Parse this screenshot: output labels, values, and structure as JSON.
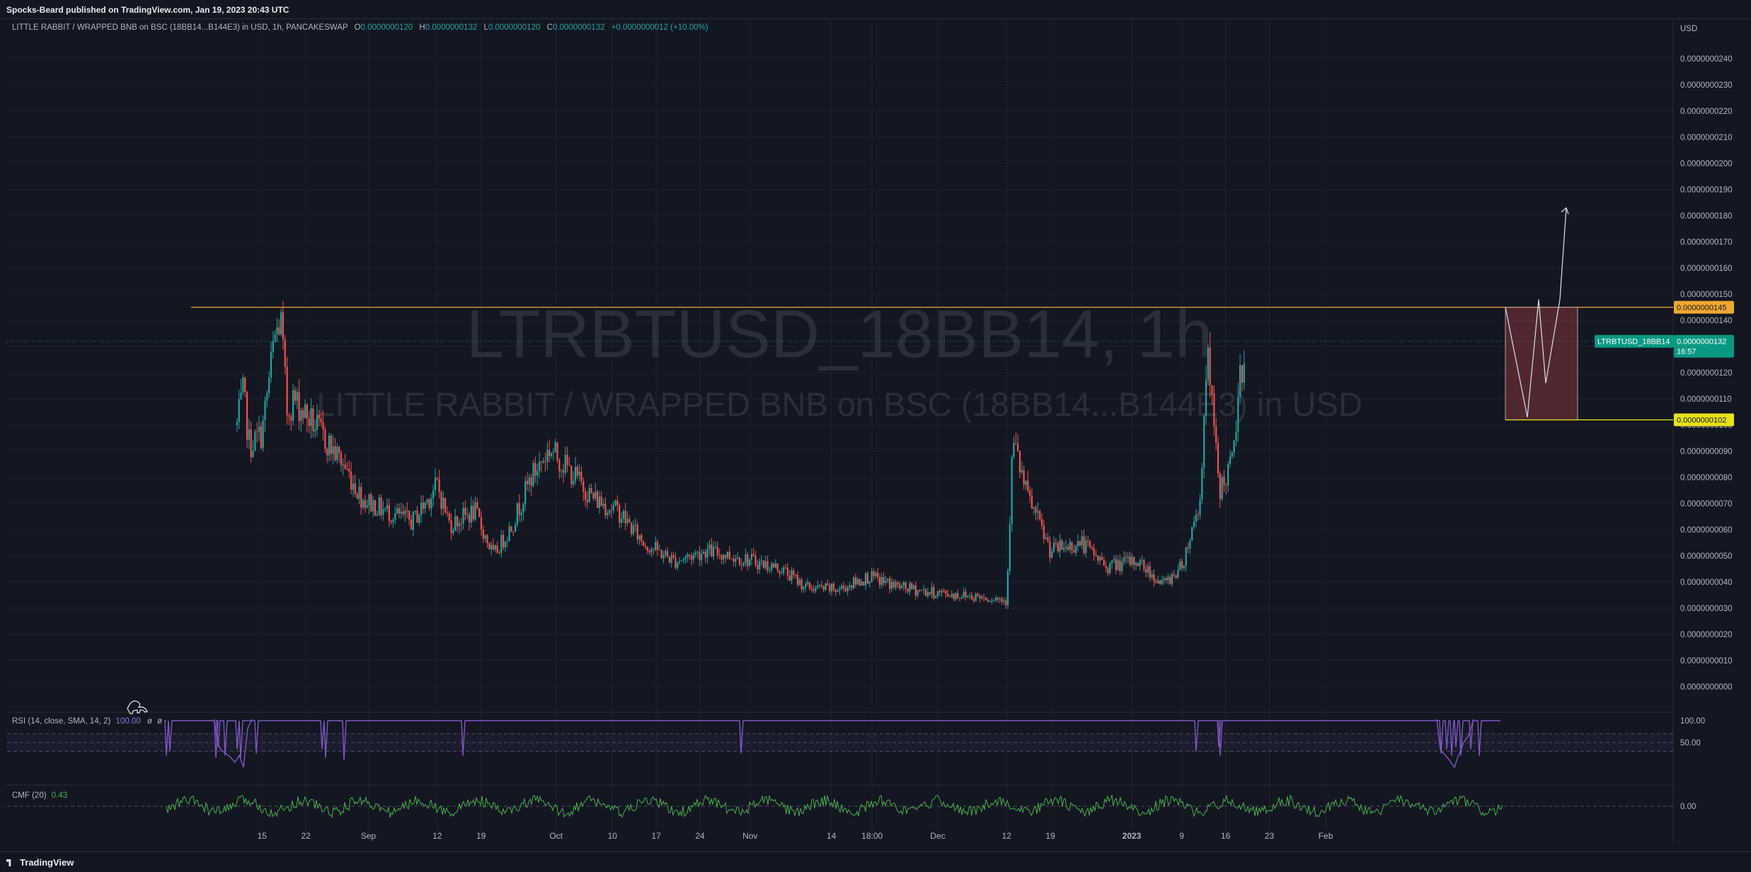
{
  "header": {
    "published_by": "Spocks-Beard published on TradingView.com, Jan 19, 2023 20:43 UTC"
  },
  "legend": {
    "symbol_line": "LITTLE RABBIT / WRAPPED BNB on BSC (18BB14...B144E3) in USD, 1h, PANCAKESWAP",
    "open_label": "O",
    "open": "0.0000000120",
    "high_label": "H",
    "high": "0.0000000132",
    "low_label": "L",
    "low": "0.0000000120",
    "close_label": "C",
    "close": "0.0000000132",
    "change": "+0.0000000012 (+10.00%)"
  },
  "watermark": {
    "line1": "LTRBTUSD_18BB14, 1h",
    "line2": "LITTLE RABBIT / WRAPPED BNB on BSC (18BB14...B144E3) in USD"
  },
  "price_axis": {
    "currency": "USD",
    "ticks": [
      "0.0000000240",
      "0.0000000230",
      "0.0000000220",
      "0.0000000210",
      "0.0000000200",
      "0.0000000190",
      "0.0000000180",
      "0.0000000170",
      "0.0000000160",
      "0.0000000150",
      "0.0000000140",
      "0.0000000130",
      "0.0000000120",
      "0.0000000110",
      "0.0000000100",
      "0.0000000090",
      "0.0000000080",
      "0.0000000070",
      "0.0000000060",
      "0.0000000050",
      "0.0000000040",
      "0.0000000030",
      "0.0000000020",
      "0.0000000010",
      "0.0000000000"
    ]
  },
  "time_axis": {
    "ticks": [
      "15",
      "22",
      "Sep",
      "12",
      "19",
      "Oct",
      "10",
      "17",
      "24",
      "Nov",
      "14",
      "18:00",
      "Dec",
      "12",
      "19",
      "2023",
      "9",
      "16",
      "23",
      "Feb"
    ]
  },
  "tags": {
    "resistance": "0.0000000145",
    "support": "0.0000000102",
    "symbol": "LTRBTUSD_18BB14",
    "last_price": "0.0000000132",
    "countdown": "16:57"
  },
  "rsi": {
    "label": "RSI (14, close, SMA, 14, 2)",
    "value": "100.00",
    "extra1": "ø",
    "extra2": "ø",
    "ticks": [
      "100.00",
      "50.00"
    ]
  },
  "cmf": {
    "label": "CMF (20)",
    "value": "0.43",
    "ticks": [
      "0.00"
    ]
  },
  "footer": {
    "brand": "TradingView"
  },
  "colors": {
    "up": "#26a69a",
    "down": "#ef5350",
    "resistance": "#f0a830",
    "support": "#e8e21a",
    "rsi": "#7e57c2",
    "cmf": "#4caf50",
    "last_price": "#089981"
  },
  "chart_data": {
    "type": "candlestick",
    "title": "LITTLE RABBIT / WRAPPED BNB on BSC (18BB14...B144E3) in USD, 1h, PANCAKESWAP",
    "ylim": [
      0,
      2.45e-08
    ],
    "y_unit": "USD",
    "price_path": [
      [
        "Aug 11",
        1e-08
      ],
      [
        "Aug 12",
        1.12e-08
      ],
      [
        "Aug 13",
        9.2e-09
      ],
      [
        "Aug 15",
        9.7e-09
      ],
      [
        "Aug 17",
        1.33e-08
      ],
      [
        "Aug 18",
        1.4e-08
      ],
      [
        "Aug 19",
        1.05e-08
      ],
      [
        "Aug 20",
        1.1e-08
      ],
      [
        "Aug 24",
        9.8e-09
      ],
      [
        "Aug 28",
        8.5e-09
      ],
      [
        "Aug 31",
        7.2e-09
      ],
      [
        "Sep 3",
        6.8e-09
      ],
      [
        "Sep 8",
        6.3e-09
      ],
      [
        "Sep 12",
        7.7e-09
      ],
      [
        "Sep 14",
        6.2e-09
      ],
      [
        "Sep 18",
        6.7e-09
      ],
      [
        "Sep 21",
        5e-09
      ],
      [
        "Sep 24",
        6.2e-09
      ],
      [
        "Sep 27",
        8e-09
      ],
      [
        "Sep 30",
        9.1e-09
      ],
      [
        "Oct 3",
        8.3e-09
      ],
      [
        "Oct 7",
        7.2e-09
      ],
      [
        "Oct 11",
        6.7e-09
      ],
      [
        "Oct 15",
        5.5e-09
      ],
      [
        "Oct 20",
        4.8e-09
      ],
      [
        "Oct 25",
        5.2e-09
      ],
      [
        "Oct 31",
        4.9e-09
      ],
      [
        "Nov 6",
        4.5e-09
      ],
      [
        "Nov 10",
        3.8e-09
      ],
      [
        "Nov 15",
        3.7e-09
      ],
      [
        "Nov 20",
        4.2e-09
      ],
      [
        "Nov 25",
        3.8e-09
      ],
      [
        "Nov 30",
        3.6e-09
      ],
      [
        "Dec 10",
        3.4e-09
      ],
      [
        "Dec 12",
        3.3e-09
      ],
      [
        "Dec 13",
        9.5e-09
      ],
      [
        "Dec 15",
        7.5e-09
      ],
      [
        "Dec 19",
        5.2e-09
      ],
      [
        "Dec 24",
        5.5e-09
      ],
      [
        "Dec 28",
        4.6e-09
      ],
      [
        "Jan 2",
        4.8e-09
      ],
      [
        "Jan 6",
        3.9e-09
      ],
      [
        "Jan 9",
        4.6e-09
      ],
      [
        "Jan 12",
        7.2e-09
      ],
      [
        "Jan 13",
        1.29e-08
      ],
      [
        "Jan 15",
        7.5e-09
      ],
      [
        "Jan 17",
        8.5e-09
      ],
      [
        "Jan 19",
        1.32e-08
      ]
    ],
    "horizontal_levels": [
      {
        "label": "resistance",
        "value": 1.45e-08
      },
      {
        "label": "support",
        "value": 1.02e-08
      }
    ],
    "projection": [
      [
        "Jan 20",
        1.45e-08
      ],
      [
        "Jan 21",
        1.03e-08
      ],
      [
        "Jan 22",
        1.48e-08
      ],
      [
        "Jan 23",
        1.16e-08
      ],
      [
        "Jan 24",
        1.48e-08
      ],
      [
        "Jan 25",
        1.83e-08
      ]
    ],
    "rsi": {
      "ylim": [
        0,
        100
      ],
      "levels": [
        70,
        50,
        30
      ],
      "last": 100.0
    },
    "cmf": {
      "ylim": [
        -0.6,
        0.6
      ],
      "zero": 0.0,
      "last": 0.43
    },
    "grid": true,
    "legend_position": "top-left"
  }
}
